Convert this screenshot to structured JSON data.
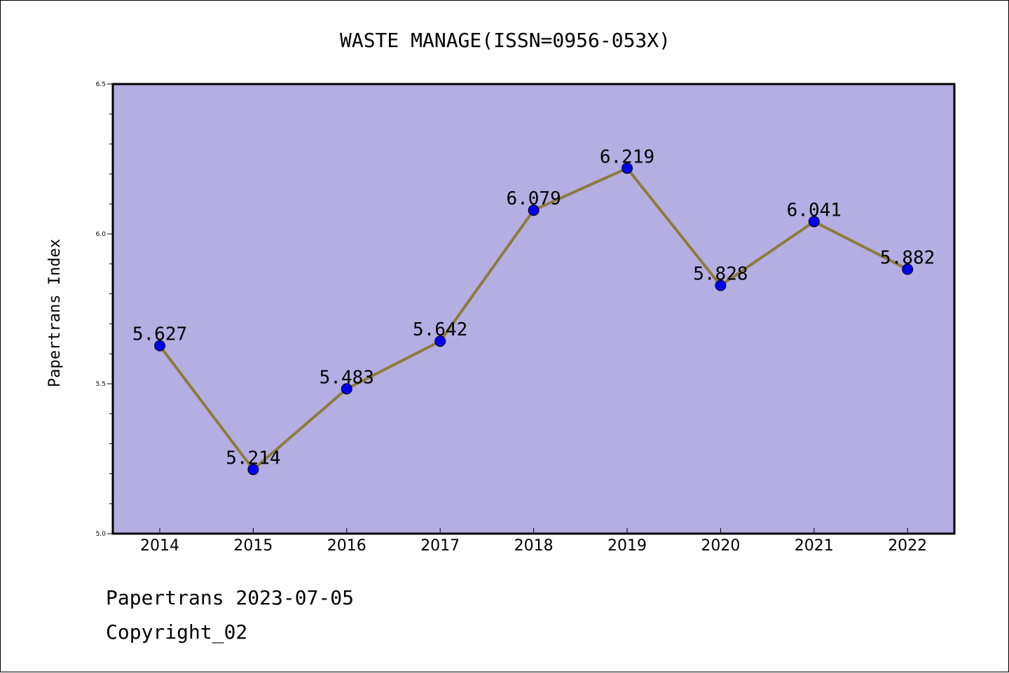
{
  "chart_data": {
    "type": "line",
    "title": "WASTE MANAGE(ISSN=0956-053X)",
    "xlabel": "",
    "ylabel": "Papertrans Index",
    "categories": [
      "2014",
      "2015",
      "2016",
      "2017",
      "2018",
      "2019",
      "2020",
      "2021",
      "2022"
    ],
    "values": [
      5.627,
      5.214,
      5.483,
      5.642,
      6.079,
      6.219,
      5.828,
      6.041,
      5.882
    ],
    "value_labels": [
      "5.627",
      "5.214",
      "5.483",
      "5.642",
      "6.079",
      "6.219",
      "5.828",
      "6.041",
      "5.882"
    ],
    "ylim": [
      5.0,
      6.5
    ],
    "yticks": [
      "5.0",
      "5.5",
      "6.0",
      "6.5"
    ],
    "grid": false,
    "colors": {
      "plot_background": "#b5aee2",
      "line": "#8c7c3c",
      "marker": "#0000ee",
      "frame": "#000000"
    }
  },
  "footer": {
    "line1": "Papertrans 2023-07-05",
    "line2": "Copyright_02"
  }
}
